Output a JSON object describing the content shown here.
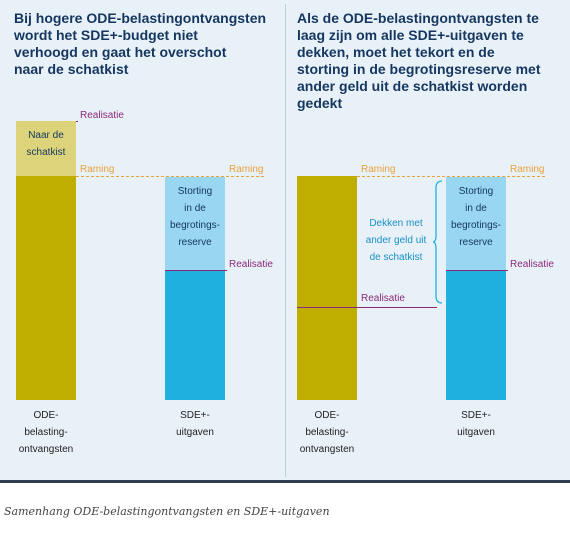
{
  "left_panel": {
    "title": [
      "Bij hogere ODE-belastingontvangsten",
      "wordt het SDE+-budget niet",
      "verhoogd en gaat het overschot",
      "naar de schatkist"
    ],
    "realisatie_label": "Realisatie",
    "ode_surplus_label": [
      "Naar de",
      "schatkist"
    ],
    "ode_raming_label": "Raming",
    "sde_raming_label": "Raming",
    "storting_label": [
      "Storting",
      "in de",
      "begrotings-",
      "reserve"
    ],
    "sde_realisatie_label": "Realisatie",
    "ode_category": [
      "ODE-",
      "belasting-",
      "ontvangsten"
    ],
    "sde_category": [
      "SDE+-",
      "uitgaven"
    ]
  },
  "right_panel": {
    "title": [
      "Als de ODE-belastingontvangsten te",
      "laag zijn om alle SDE+-uitgaven te",
      "dekken, moet het tekort en de",
      "storting in de begrotingsreserve met",
      "ander geld uit de schatkist worden",
      "gedekt"
    ],
    "ode_raming_label": "Raming",
    "sde_raming_label": "Raming",
    "dekken_label": [
      "Dekken met",
      "ander geld uit",
      "de schatkist"
    ],
    "storting_label": [
      "Storting",
      "in de",
      "begrotings-",
      "reserve"
    ],
    "sde_realisatie_label": "Realisatie",
    "ode_realisatie_label": "Realisatie",
    "ode_category": [
      "ODE-",
      "belasting-",
      "ontvangsten"
    ],
    "sde_category": [
      "SDE+-",
      "uitgaven"
    ]
  },
  "caption": "Samenhang ODE-belastingontvangsten en SDE+-uitgaven",
  "colors": {
    "olive": "#bfae00",
    "olive_light": "#ddd37a",
    "cyan": "#1eb1e0",
    "cyan_light": "#98d6f2",
    "purple": "#8b2a7b",
    "orange": "#e8a23a",
    "title": "#14365f"
  }
}
